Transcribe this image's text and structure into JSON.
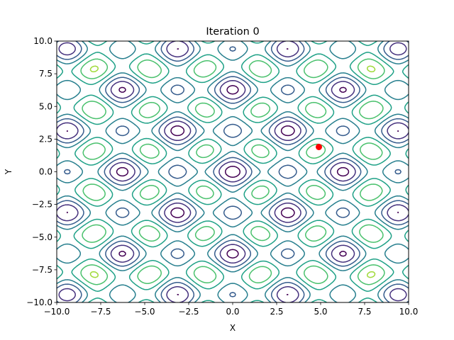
{
  "chart_data": {
    "type": "contour",
    "title": "Iteration 0",
    "xlabel": "X",
    "ylabel": "Y",
    "xlim": [
      -10,
      10
    ],
    "ylim": [
      -10,
      10
    ],
    "xticks": [
      -10,
      -7.5,
      -5,
      -2.5,
      0,
      2.5,
      5,
      7.5,
      10
    ],
    "yticks": [
      -10,
      -7.5,
      -5,
      -2.5,
      0,
      2.5,
      5,
      7.5,
      10
    ],
    "xtick_labels": [
      "−10.0",
      "−7.5",
      "−5.0",
      "−2.5",
      "0.0",
      "2.5",
      "5.0",
      "7.5",
      "10.0"
    ],
    "ytick_labels": [
      "−10.0",
      "−7.5",
      "−5.0",
      "−2.5",
      "0.0",
      "2.5",
      "5.0",
      "7.5",
      "10.0"
    ],
    "grid": false,
    "contour_levels": [
      5,
      15,
      25,
      35,
      45,
      55,
      65,
      75
    ],
    "colormap": [
      "#440154",
      "#46327e",
      "#365c8d",
      "#277f8e",
      "#1fa187",
      "#4ac16d",
      "#a0da39",
      "#fde725"
    ],
    "point": {
      "x": 4.9,
      "y": 1.9,
      "color": "#ff0000"
    }
  }
}
